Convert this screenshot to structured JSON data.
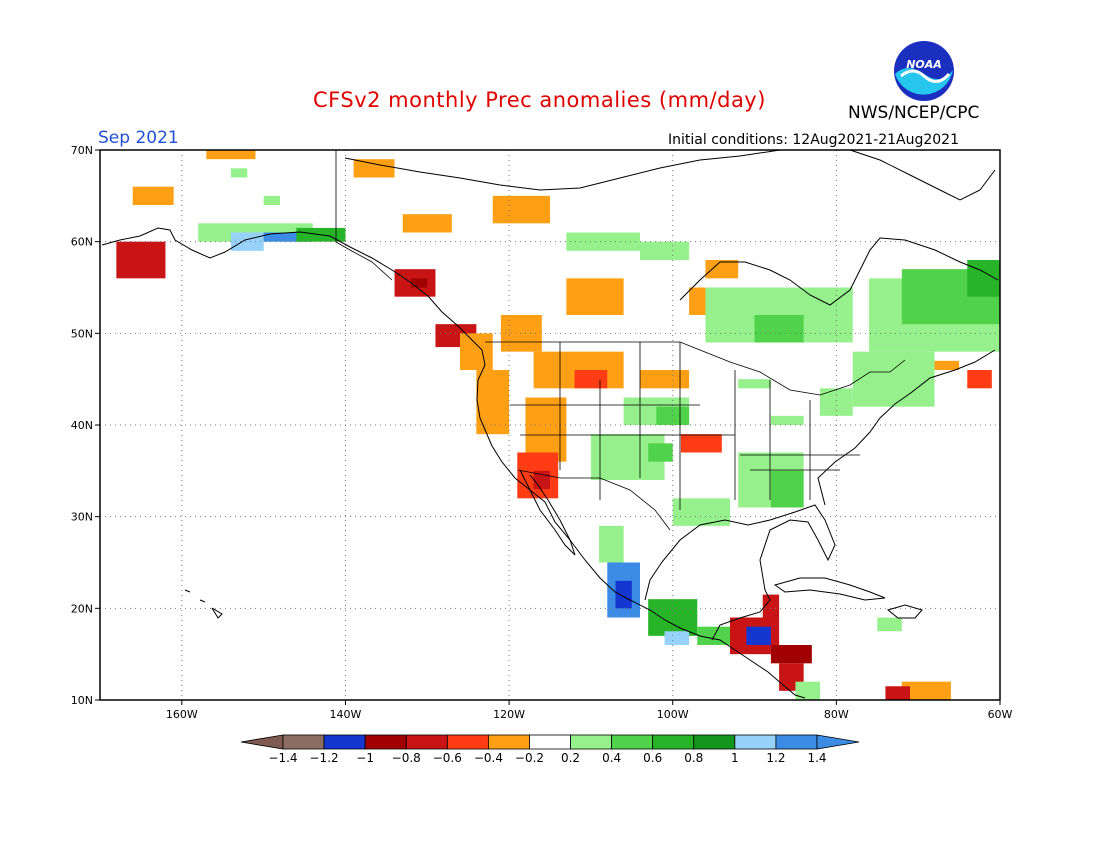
{
  "header": {
    "title": "CFSv2 monthly Prec anomalies (mm/day)",
    "month": "Sep 2021",
    "initial_conditions": "Initial conditions: 12Aug2021-21Aug2021",
    "org": "NWS/NCEP/CPC",
    "logo_text": "NOAA"
  },
  "axes": {
    "lat_labels": [
      "70N",
      "60N",
      "50N",
      "40N",
      "30N",
      "20N",
      "10N"
    ],
    "lat_values": [
      70,
      60,
      50,
      40,
      30,
      20,
      10
    ],
    "lon_labels": [
      "160W",
      "140W",
      "120W",
      "100W",
      "80W",
      "60W"
    ],
    "lon_values": [
      -160,
      -140,
      -120,
      -100,
      -80,
      -60
    ],
    "lon_range": [
      -170,
      -60
    ],
    "lat_range": [
      10,
      70
    ]
  },
  "colorbar": {
    "labels": [
      "-1.4",
      "-1.2",
      "-1",
      "-0.8",
      "-0.6",
      "-0.4",
      "-0.2",
      "0.2",
      "0.4",
      "0.6",
      "0.8",
      "1",
      "1.2",
      "1.4"
    ],
    "colors": [
      "#7f5a50",
      "#8c6d63",
      "#1437d2",
      "#a00000",
      "#c81414",
      "#ff3c14",
      "#ffa014",
      "#ffffff",
      "#96f08c",
      "#50d24b",
      "#28b428",
      "#14961e",
      "#96d2fa",
      "#3c8ce6",
      "#3c8ce6"
    ]
  },
  "map_data": {
    "palette": {
      "r": "#c81414",
      "R": "#a00000",
      "o": "#ffa014",
      "O": "#ff3c14",
      "g": "#96f08c",
      "G": "#50d24b",
      "D": "#28b428",
      "E": "#14961e",
      "b": "#1437d2",
      "c": "#96d2fa",
      "C": "#3c8ce6"
    },
    "anomaly_patches": [
      {
        "lon": [
          -168,
          -162
        ],
        "lat": [
          56,
          60
        ],
        "cat": "r"
      },
      {
        "lon": [
          -166,
          -161
        ],
        "lat": [
          64,
          66
        ],
        "cat": "o"
      },
      {
        "lon": [
          -157,
          -151
        ],
        "lat": [
          69,
          70
        ],
        "cat": "o"
      },
      {
        "lon": [
          -158,
          -144
        ],
        "lat": [
          60,
          62
        ],
        "cat": "g"
      },
      {
        "lon": [
          -154,
          -150
        ],
        "lat": [
          59,
          61
        ],
        "cat": "c"
      },
      {
        "lon": [
          -150,
          -144
        ],
        "lat": [
          60,
          61
        ],
        "cat": "C"
      },
      {
        "lon": [
          -146,
          -140
        ],
        "lat": [
          60,
          61.5
        ],
        "cat": "D"
      },
      {
        "lon": [
          -139,
          -134
        ],
        "lat": [
          67,
          69
        ],
        "cat": "o"
      },
      {
        "lon": [
          -133,
          -127
        ],
        "lat": [
          61,
          63
        ],
        "cat": "o"
      },
      {
        "lon": [
          -122,
          -115
        ],
        "lat": [
          62,
          65
        ],
        "cat": "o"
      },
      {
        "lon": [
          -113,
          -104
        ],
        "lat": [
          59,
          61
        ],
        "cat": "g"
      },
      {
        "lon": [
          -104,
          -98
        ],
        "lat": [
          58,
          60
        ],
        "cat": "g"
      },
      {
        "lon": [
          -113,
          -106
        ],
        "lat": [
          52,
          56
        ],
        "cat": "o"
      },
      {
        "lon": [
          -96,
          -92
        ],
        "lat": [
          56,
          58
        ],
        "cat": "o"
      },
      {
        "lon": [
          -98,
          -94
        ],
        "lat": [
          52,
          55
        ],
        "cat": "o"
      },
      {
        "lon": [
          -96,
          -78
        ],
        "lat": [
          49,
          55
        ],
        "cat": "g"
      },
      {
        "lon": [
          -90,
          -84
        ],
        "lat": [
          49,
          52
        ],
        "cat": "G"
      },
      {
        "lon": [
          -76,
          -60
        ],
        "lat": [
          48,
          56
        ],
        "cat": "g"
      },
      {
        "lon": [
          -72,
          -60
        ],
        "lat": [
          51,
          57
        ],
        "cat": "G"
      },
      {
        "lon": [
          -64,
          -60
        ],
        "lat": [
          54,
          58
        ],
        "cat": "D"
      },
      {
        "lon": [
          -78,
          -68
        ],
        "lat": [
          42,
          48
        ],
        "cat": "g"
      },
      {
        "lon": [
          -68,
          -65
        ],
        "lat": [
          46,
          47
        ],
        "cat": "o"
      },
      {
        "lon": [
          -64,
          -61
        ],
        "lat": [
          44,
          46
        ],
        "cat": "O"
      },
      {
        "lon": [
          -134,
          -129
        ],
        "lat": [
          54,
          57
        ],
        "cat": "r"
      },
      {
        "lon": [
          -132,
          -130
        ],
        "lat": [
          55,
          56
        ],
        "cat": "R"
      },
      {
        "lon": [
          -129,
          -124
        ],
        "lat": [
          48.5,
          51
        ],
        "cat": "r"
      },
      {
        "lon": [
          -126,
          -122
        ],
        "lat": [
          46,
          50
        ],
        "cat": "o"
      },
      {
        "lon": [
          -124,
          -120
        ],
        "lat": [
          39,
          46
        ],
        "cat": "o"
      },
      {
        "lon": [
          -121,
          -116
        ],
        "lat": [
          48,
          52
        ],
        "cat": "o"
      },
      {
        "lon": [
          -117,
          -106
        ],
        "lat": [
          44,
          48
        ],
        "cat": "o"
      },
      {
        "lon": [
          -112,
          -108
        ],
        "lat": [
          44,
          46
        ],
        "cat": "O"
      },
      {
        "lon": [
          -104,
          -98
        ],
        "lat": [
          44,
          46
        ],
        "cat": "o"
      },
      {
        "lon": [
          -118,
          -113
        ],
        "lat": [
          36,
          43
        ],
        "cat": "o"
      },
      {
        "lon": [
          -119,
          -114
        ],
        "lat": [
          32,
          37
        ],
        "cat": "O"
      },
      {
        "lon": [
          -117,
          -115
        ],
        "lat": [
          33,
          35
        ],
        "cat": "r"
      },
      {
        "lon": [
          -106,
          -98
        ],
        "lat": [
          40,
          43
        ],
        "cat": "g"
      },
      {
        "lon": [
          -102,
          -98
        ],
        "lat": [
          40,
          42
        ],
        "cat": "G"
      },
      {
        "lon": [
          -110,
          -101
        ],
        "lat": [
          34,
          39
        ],
        "cat": "g"
      },
      {
        "lon": [
          -103,
          -100
        ],
        "lat": [
          36,
          38
        ],
        "cat": "G"
      },
      {
        "lon": [
          -99,
          -94
        ],
        "lat": [
          37,
          39
        ],
        "cat": "O"
      },
      {
        "lon": [
          -92,
          -84
        ],
        "lat": [
          31,
          37
        ],
        "cat": "g"
      },
      {
        "lon": [
          -88,
          -84
        ],
        "lat": [
          31,
          35
        ],
        "cat": "G"
      },
      {
        "lon": [
          -100,
          -93
        ],
        "lat": [
          29,
          32
        ],
        "cat": "g"
      },
      {
        "lon": [
          -109,
          -106
        ],
        "lat": [
          25,
          29
        ],
        "cat": "g"
      },
      {
        "lon": [
          -108,
          -104
        ],
        "lat": [
          19,
          25
        ],
        "cat": "C"
      },
      {
        "lon": [
          -107,
          -105
        ],
        "lat": [
          20,
          23
        ],
        "cat": "b"
      },
      {
        "lon": [
          -103,
          -97
        ],
        "lat": [
          17,
          21
        ],
        "cat": "D"
      },
      {
        "lon": [
          -101,
          -98
        ],
        "lat": [
          16,
          17.5
        ],
        "cat": "c"
      },
      {
        "lon": [
          -97,
          -92
        ],
        "lat": [
          16,
          18
        ],
        "cat": "G"
      },
      {
        "lon": [
          -93,
          -87
        ],
        "lat": [
          15,
          19
        ],
        "cat": "r"
      },
      {
        "lon": [
          -91,
          -88
        ],
        "lat": [
          16,
          18
        ],
        "cat": "b"
      },
      {
        "lon": [
          -89,
          -87
        ],
        "lat": [
          19,
          21.5
        ],
        "cat": "r"
      },
      {
        "lon": [
          -88,
          -83
        ],
        "lat": [
          14,
          16
        ],
        "cat": "R"
      },
      {
        "lon": [
          -87,
          -84
        ],
        "lat": [
          11,
          14
        ],
        "cat": "r"
      },
      {
        "lon": [
          -85,
          -82
        ],
        "lat": [
          10,
          12
        ],
        "cat": "g"
      },
      {
        "lon": [
          -75,
          -72
        ],
        "lat": [
          17.5,
          19
        ],
        "cat": "g"
      },
      {
        "lon": [
          -72,
          -66
        ],
        "lat": [
          10,
          12
        ],
        "cat": "o"
      },
      {
        "lon": [
          -74,
          -71
        ],
        "lat": [
          10,
          11.5
        ],
        "cat": "r"
      },
      {
        "lon": [
          -154,
          -152
        ],
        "lat": [
          67,
          68
        ],
        "cat": "g"
      },
      {
        "lon": [
          -150,
          -148
        ],
        "lat": [
          64,
          65
        ],
        "cat": "g"
      },
      {
        "lon": [
          -92,
          -88
        ],
        "lat": [
          44,
          45
        ],
        "cat": "g"
      },
      {
        "lon": [
          -82,
          -78
        ],
        "lat": [
          41,
          44
        ],
        "cat": "g"
      },
      {
        "lon": [
          -88,
          -84
        ],
        "lat": [
          40,
          41
        ],
        "cat": "g"
      }
    ]
  }
}
